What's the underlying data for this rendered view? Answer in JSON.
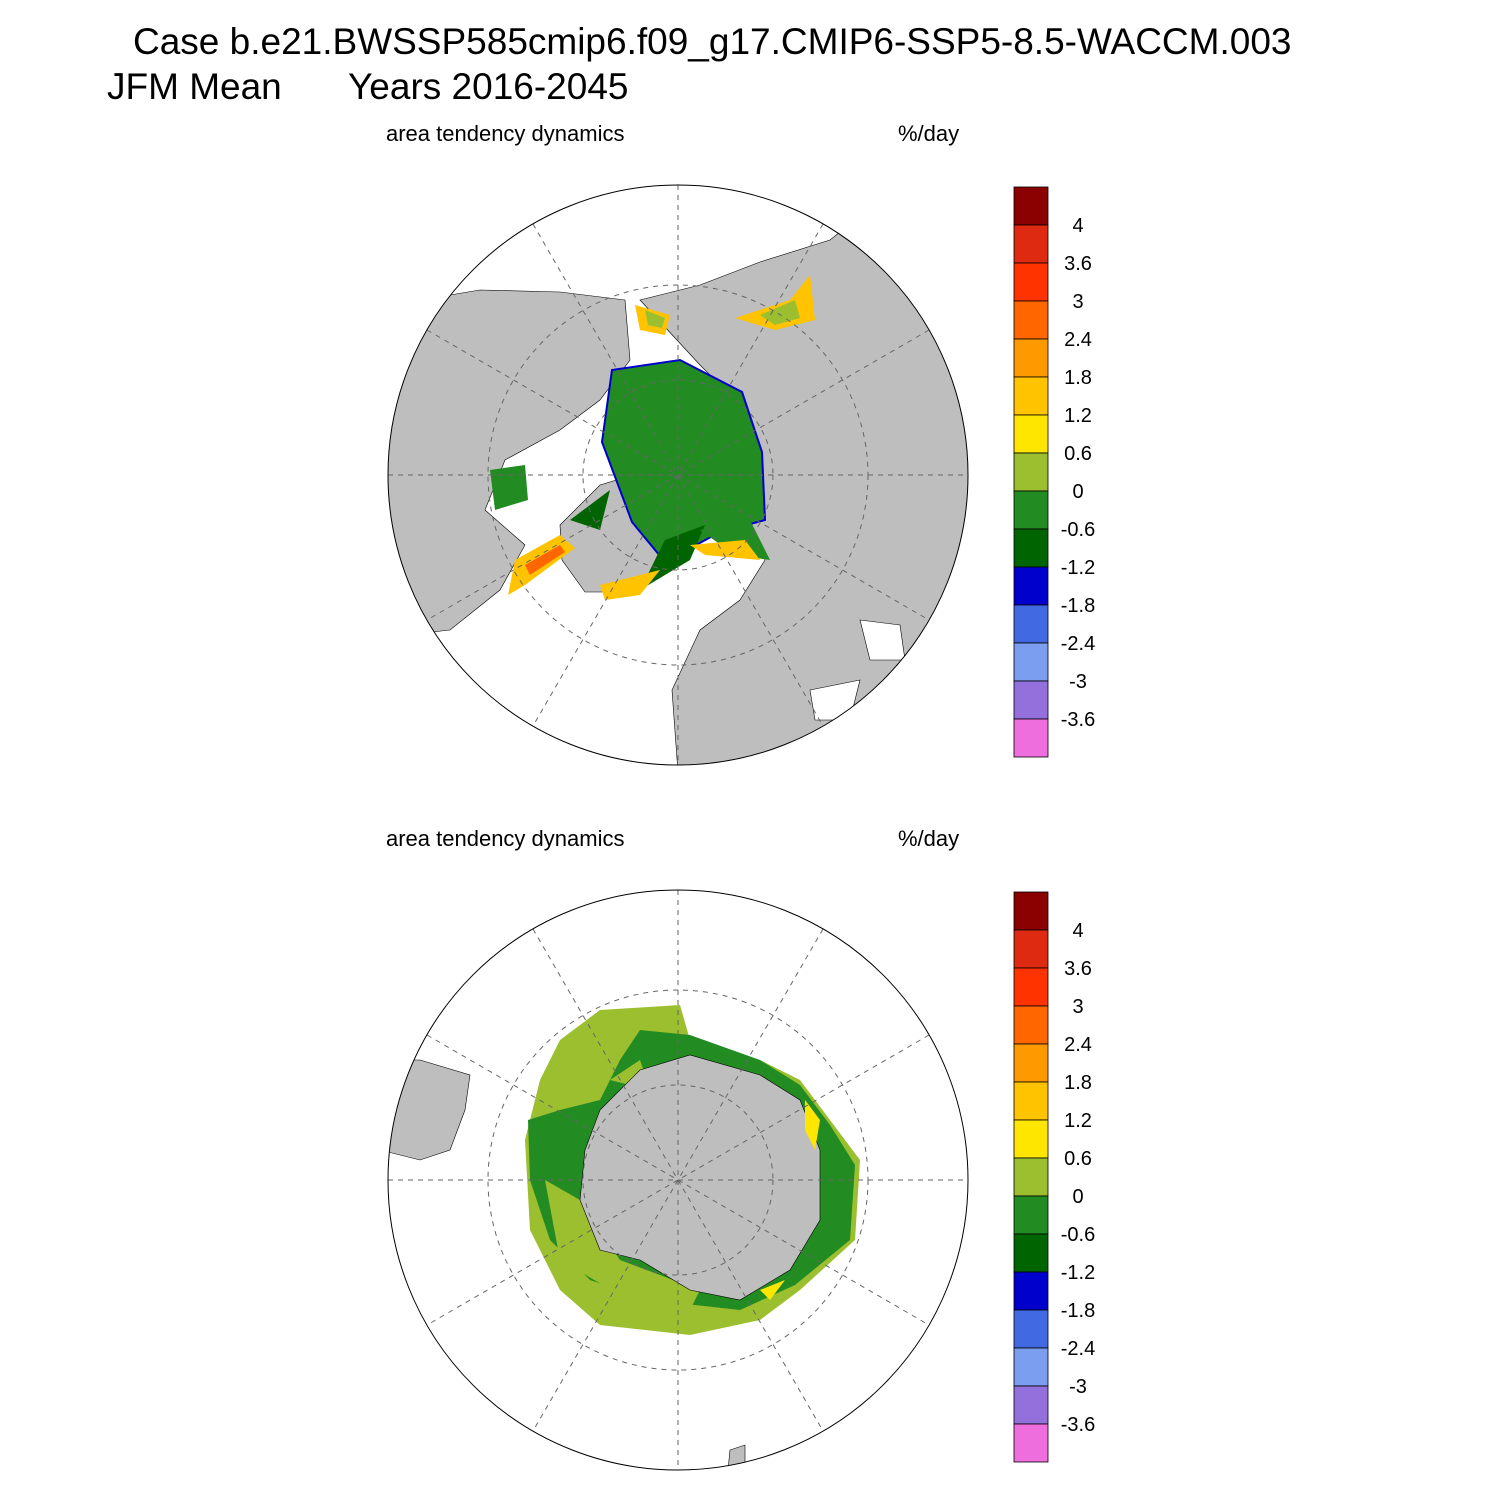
{
  "header": {
    "title": "Case b.e21.BWSSP585cmip6.f09_g17.CMIP6-SSP5-8.5-WACCM.003",
    "period": "JFM Mean",
    "years": "Years 2016-2045"
  },
  "panels": [
    {
      "left_label": "area tendency dynamics",
      "right_label": "%/day"
    },
    {
      "left_label": "area tendency dynamics",
      "right_label": "%/day"
    }
  ],
  "colorbar": {
    "colors": [
      "#8b0000",
      "#dd2a10",
      "#ff3300",
      "#ff6600",
      "#ff9900",
      "#ffc300",
      "#ffe600",
      "#9bbf2f",
      "#228b22",
      "#006400",
      "#0000cd",
      "#4169e1",
      "#7b9ef0",
      "#9370db",
      "#ee6edd"
    ],
    "labels": [
      4,
      3.6,
      3,
      2.4,
      1.8,
      1.2,
      0.6,
      0,
      -0.6,
      -1.2,
      -1.8,
      -2.4,
      -3,
      -3.6
    ]
  }
}
